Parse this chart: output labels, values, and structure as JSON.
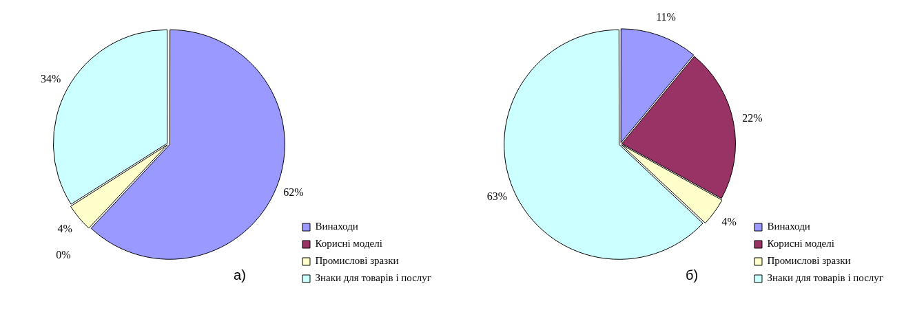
{
  "chart_data": [
    {
      "type": "pie",
      "title": "а)",
      "categories": [
        "Винаходи",
        "Корисні моделі",
        "Промислові зразки",
        "Знаки для товарів і послуг"
      ],
      "values": [
        62,
        0,
        4,
        34
      ],
      "colors": [
        "#9999ff",
        "#993366",
        "#ffffcc",
        "#ccffff"
      ],
      "value_labels": [
        "62%",
        "0%",
        "4%",
        "34%"
      ],
      "legend": "right"
    },
    {
      "type": "pie",
      "title": "б)",
      "categories": [
        "Винаходи",
        "Корисні моделі",
        "Промислові зразки",
        "Знаки для товарів і послуг"
      ],
      "values": [
        11,
        22,
        4,
        63
      ],
      "colors": [
        "#9999ff",
        "#993366",
        "#ffffcc",
        "#ccffff"
      ],
      "value_labels": [
        "11%",
        "22%",
        "4%",
        "63%"
      ],
      "legend": "right"
    }
  ]
}
